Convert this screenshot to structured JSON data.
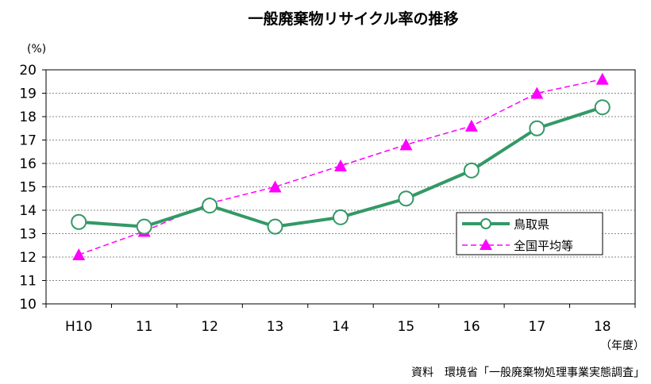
{
  "chart_data": {
    "type": "line",
    "title": "一般廃棄物リサイクル率の推移",
    "y_unit": "(%)",
    "x_unit": "（年度）",
    "source": "資料　環境省「一般廃棄物処理事業実態調査」",
    "categories": [
      "H10",
      "11",
      "12",
      "13",
      "14",
      "15",
      "16",
      "17",
      "18"
    ],
    "ylim": [
      10,
      20
    ],
    "yticks": [
      "10",
      "11",
      "12",
      "13",
      "14",
      "15",
      "16",
      "17",
      "18",
      "19",
      "20"
    ],
    "grid": true,
    "legend_position": "right",
    "series": [
      {
        "name": "鳥取県",
        "color": "#339966",
        "marker": "circle",
        "values": [
          13.5,
          13.3,
          14.2,
          13.3,
          13.7,
          14.5,
          15.7,
          17.5,
          18.4
        ]
      },
      {
        "name": "全国平均等",
        "color": "#ff00ff",
        "marker": "triangle",
        "values": [
          12.1,
          13.1,
          14.3,
          15.0,
          15.9,
          16.8,
          17.6,
          19.0,
          19.6
        ]
      }
    ]
  }
}
